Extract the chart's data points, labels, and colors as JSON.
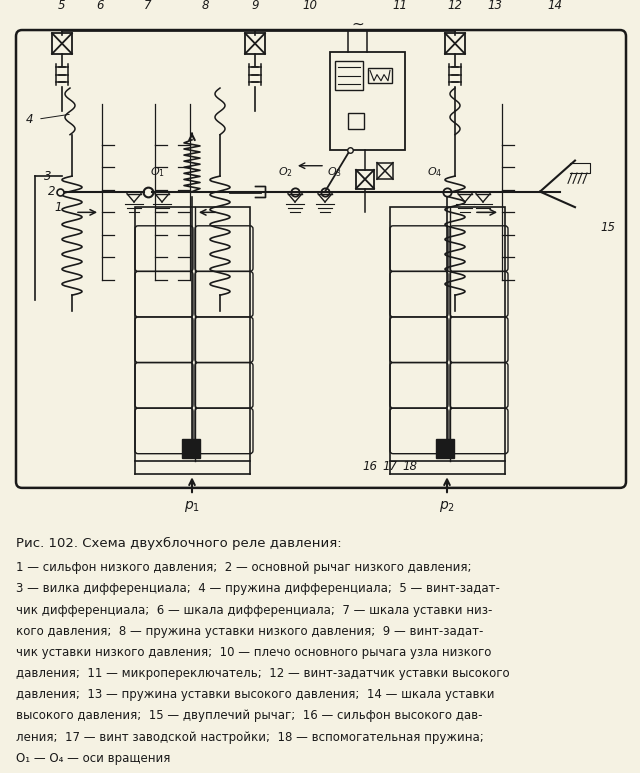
{
  "bg_color": "#f5f2e3",
  "title_caption": "Рис. 102. Схема двухблочного реле давления:",
  "caption_lines": [
    "1 — сильфон низкого давления;  2 — основной рычаг низкого давления;",
    "3 — вилка дифференциала;  4 — пружина дифференциала;  5 — винт-задат-",
    "чик дифференциала;  6 — шкала дифференциала;  7 — шкала уставки низ-",
    "кого давления;  8 — пружина уставки низкого давления;  9 — винт-задат-",
    "чик уставки низкого давления;  10 — плечо основного рычага узла низкого",
    "давления;  11 — микропереключатель;  12 — винт-задатчик уставки высокого",
    "давления;  13 — пружина уставки высокого давления;  14 — шкала уставки",
    "высокого давления;  15 — двуплечий рычаг;  16 — сильфон высокого дав-",
    "ления;  17 — винт заводской настройки;  18 — вспомогательная пружина;",
    "O₁ — O₄ — оси вращения"
  ],
  "line_color": "#1a1a1a",
  "fig_width": 6.4,
  "fig_height": 7.73,
  "dpi": 100
}
